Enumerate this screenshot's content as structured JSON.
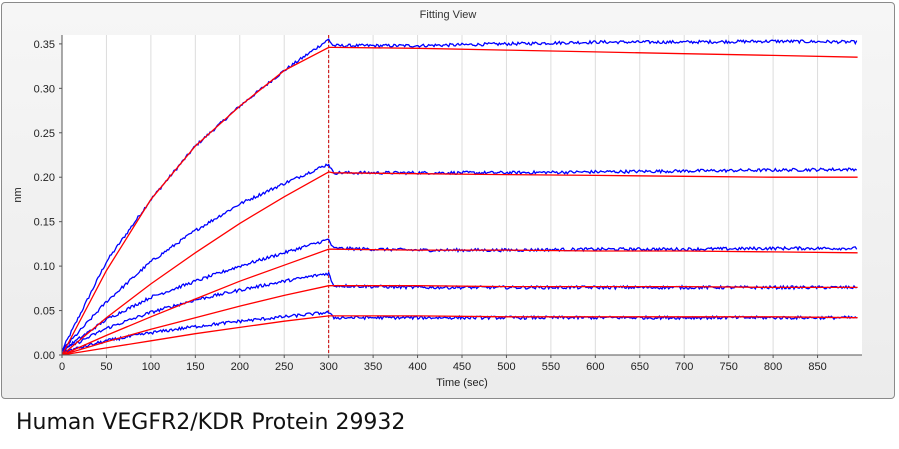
{
  "window": {
    "title": "Fitting View"
  },
  "caption": "Human VEGFR2/KDR Protein 29932",
  "colors": {
    "measured": "#0000ff",
    "fit": "#ff0000",
    "divider": "#cc0000",
    "grid": "#dcdcdc"
  },
  "chart_data": {
    "type": "line",
    "title": "Fitting View",
    "xlabel": "Time (sec)",
    "ylabel": "nm",
    "xlim": [
      0,
      900
    ],
    "ylim": [
      0,
      0.36
    ],
    "x_ticks": [
      0,
      50,
      100,
      150,
      200,
      250,
      300,
      350,
      400,
      450,
      500,
      550,
      600,
      650,
      700,
      750,
      800,
      850
    ],
    "y_ticks": [
      0.0,
      0.05,
      0.1,
      0.15,
      0.2,
      0.25,
      0.3,
      0.35
    ],
    "y_tick_labels": [
      "0.00",
      "0.05",
      "0.10",
      "0.15",
      "0.20",
      "0.25",
      "0.30",
      "0.35"
    ],
    "grid": "vertical",
    "legend": "none",
    "association_end": 300,
    "series": [
      {
        "kind": "measured",
        "x": [
          0,
          50,
          100,
          150,
          200,
          250,
          300,
          305,
          400,
          500,
          600,
          700,
          800,
          900
        ],
        "y": [
          0.005,
          0.105,
          0.175,
          0.235,
          0.28,
          0.32,
          0.355,
          0.348,
          0.348,
          0.35,
          0.352,
          0.352,
          0.353,
          0.352
        ]
      },
      {
        "kind": "fit",
        "x": [
          0,
          50,
          100,
          150,
          200,
          250,
          300,
          305,
          400,
          500,
          600,
          700,
          800,
          900
        ],
        "y": [
          0.0,
          0.095,
          0.175,
          0.235,
          0.28,
          0.32,
          0.346,
          0.346,
          0.345,
          0.343,
          0.341,
          0.339,
          0.337,
          0.335
        ]
      },
      {
        "kind": "measured",
        "x": [
          0,
          50,
          100,
          150,
          200,
          250,
          300,
          305,
          400,
          500,
          600,
          700,
          800,
          900
        ],
        "y": [
          0.005,
          0.06,
          0.105,
          0.14,
          0.17,
          0.193,
          0.215,
          0.205,
          0.205,
          0.205,
          0.206,
          0.207,
          0.208,
          0.209
        ]
      },
      {
        "kind": "fit",
        "x": [
          0,
          50,
          100,
          150,
          200,
          250,
          300,
          305,
          400,
          500,
          600,
          700,
          800,
          900
        ],
        "y": [
          0.0,
          0.042,
          0.08,
          0.115,
          0.148,
          0.178,
          0.206,
          0.205,
          0.204,
          0.203,
          0.202,
          0.201,
          0.2,
          0.2
        ]
      },
      {
        "kind": "measured",
        "x": [
          0,
          50,
          100,
          150,
          200,
          250,
          300,
          305,
          400,
          500,
          600,
          700,
          800,
          900
        ],
        "y": [
          0.005,
          0.04,
          0.065,
          0.083,
          0.1,
          0.115,
          0.13,
          0.12,
          0.118,
          0.118,
          0.119,
          0.119,
          0.12,
          0.12
        ]
      },
      {
        "kind": "fit",
        "x": [
          0,
          50,
          100,
          150,
          200,
          250,
          300,
          305,
          400,
          500,
          600,
          700,
          800,
          900
        ],
        "y": [
          0.0,
          0.022,
          0.043,
          0.063,
          0.083,
          0.101,
          0.119,
          0.119,
          0.118,
          0.118,
          0.117,
          0.117,
          0.116,
          0.115
        ]
      },
      {
        "kind": "measured",
        "x": [
          0,
          50,
          100,
          150,
          200,
          250,
          300,
          305,
          400,
          500,
          600,
          700,
          800,
          900
        ],
        "y": [
          0.005,
          0.03,
          0.048,
          0.062,
          0.073,
          0.083,
          0.092,
          0.078,
          0.076,
          0.076,
          0.076,
          0.076,
          0.076,
          0.076
        ]
      },
      {
        "kind": "fit",
        "x": [
          0,
          50,
          100,
          150,
          200,
          250,
          300,
          305,
          400,
          500,
          600,
          700,
          800,
          900
        ],
        "y": [
          0.0,
          0.015,
          0.029,
          0.042,
          0.055,
          0.067,
          0.078,
          0.078,
          0.078,
          0.077,
          0.077,
          0.077,
          0.076,
          0.076
        ]
      },
      {
        "kind": "measured",
        "x": [
          0,
          50,
          100,
          150,
          200,
          250,
          300,
          305,
          400,
          500,
          600,
          700,
          800,
          900
        ],
        "y": [
          0.003,
          0.016,
          0.025,
          0.032,
          0.038,
          0.043,
          0.048,
          0.042,
          0.042,
          0.042,
          0.042,
          0.042,
          0.042,
          0.042
        ]
      },
      {
        "kind": "fit",
        "x": [
          0,
          50,
          100,
          150,
          200,
          250,
          300,
          305,
          400,
          500,
          600,
          700,
          800,
          900
        ],
        "y": [
          0.0,
          0.008,
          0.016,
          0.024,
          0.031,
          0.038,
          0.044,
          0.044,
          0.044,
          0.043,
          0.043,
          0.043,
          0.043,
          0.042
        ]
      }
    ]
  }
}
